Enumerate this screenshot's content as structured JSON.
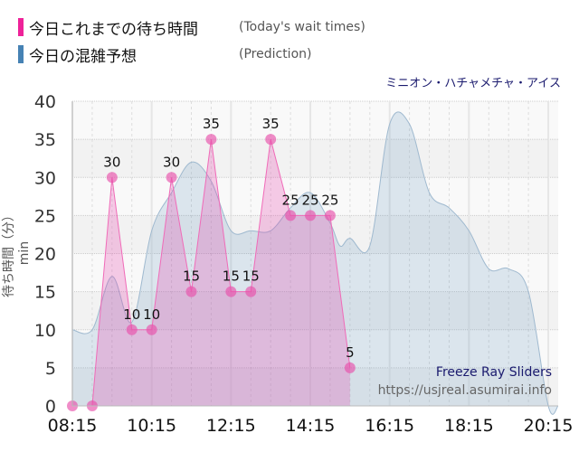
{
  "legend": [
    {
      "label": "今日これまでの待ち時間",
      "sub": "(Today's wait times)",
      "color": "#ee2299"
    },
    {
      "label": "今日の混雑予想",
      "sub": "(Prediction)",
      "color": "#4682b4"
    }
  ],
  "subtitle": "ミニオン・ハチャメチャ・アイス",
  "watermark": {
    "title": "Freeze Ray Sliders",
    "url": "https://usjreal.asumirai.info"
  },
  "chart_data": {
    "type": "area",
    "title": "",
    "xlabel": "",
    "ylabel": "待ち時間（分）min",
    "ylim": [
      0,
      40
    ],
    "xlim": [
      "08:15",
      "20:30"
    ],
    "yticks": [
      0,
      5,
      10,
      15,
      20,
      25,
      30,
      35,
      40
    ],
    "xticks": [
      "08:15",
      "10:15",
      "12:15",
      "14:15",
      "16:15",
      "18:15",
      "20:15"
    ],
    "grid": true,
    "series": [
      {
        "name": "今日の混雑予想",
        "type": "area-smooth",
        "color": "#4682b4",
        "x": [
          "08:15",
          "08:45",
          "09:15",
          "09:45",
          "10:15",
          "10:45",
          "11:15",
          "11:45",
          "12:15",
          "12:45",
          "13:15",
          "13:45",
          "14:15",
          "14:45",
          "15:00",
          "15:15",
          "15:45",
          "16:15",
          "16:45",
          "17:15",
          "17:45",
          "18:15",
          "18:45",
          "19:15",
          "19:45",
          "20:15",
          "20:30"
        ],
        "values": [
          10,
          10,
          17,
          11,
          23,
          28,
          32,
          29.5,
          23,
          23,
          23,
          26,
          28,
          24,
          21,
          22,
          21,
          37,
          37,
          28,
          26,
          23,
          18,
          18,
          15,
          0,
          0
        ]
      },
      {
        "name": "今日これまでの待ち時間",
        "type": "area-line",
        "color": "#ee2299",
        "labels": true,
        "x": [
          "08:15",
          "08:45",
          "09:15",
          "09:45",
          "10:15",
          "10:45",
          "11:15",
          "11:45",
          "12:15",
          "12:45",
          "13:15",
          "13:45",
          "14:15",
          "14:45",
          "15:15"
        ],
        "values": [
          0,
          0,
          30,
          10,
          10,
          30,
          15,
          35,
          15,
          15,
          35,
          25,
          25,
          25,
          5
        ]
      }
    ]
  }
}
